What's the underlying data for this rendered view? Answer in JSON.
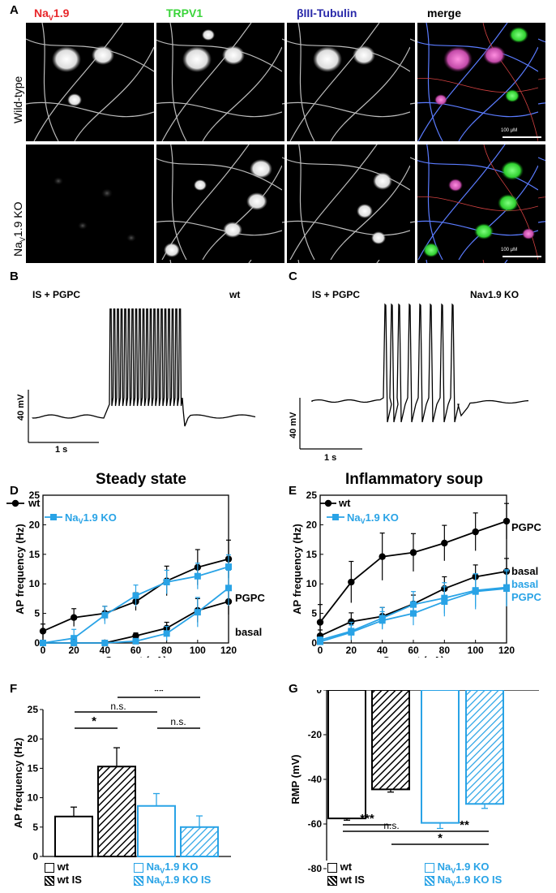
{
  "panels": {
    "A": {
      "label": "A",
      "channels": [
        "Na",
        "1.9",
        "V",
        "TRPV1",
        "βIII-Tubulin",
        "merge"
      ],
      "rows": [
        "Wild-type",
        "Na",
        "V",
        "1.9 KO"
      ],
      "scalebar": "100 µM"
    },
    "B": {
      "label": "B",
      "condition": "IS + PGPC",
      "genotype": "wt",
      "scale_v": "40 mV",
      "scale_t": "1 s"
    },
    "C": {
      "label": "C",
      "condition": "IS + PGPC",
      "genotype": "Nav1.9 KO",
      "scale_v": "40 mV",
      "scale_t": "1 s"
    },
    "D": {
      "label": "D",
      "title": "Steady state",
      "legend_wt": "wt",
      "legend_ko_a": "Na",
      "legend_ko_sub": "V",
      "legend_ko_b": "1.9 KO",
      "ann_pgpc": "PGPC",
      "ann_basal": "basal"
    },
    "E": {
      "label": "E",
      "title": "Inflammatory soup",
      "legend_wt": "wt",
      "legend_ko_a": "Na",
      "legend_ko_sub": "V",
      "legend_ko_b": "1.9 KO",
      "ann_pgpc": "PGPC",
      "ann_basal": "basal",
      "ann_basal_ko": "basal",
      "ann_pgpc_ko": "PGPC"
    },
    "F": {
      "label": "F",
      "sig1": "*",
      "sig2": "n.s.",
      "sig3": "**",
      "sig4": "n.s.",
      "leg_wt": "wt",
      "leg_wtis": "wt IS",
      "leg_ko_a": "Na",
      "leg_ko_sub": "V",
      "leg_ko_b": "1.9 KO",
      "leg_koIS_b": "1.9 KO IS"
    },
    "G": {
      "label": "G",
      "sig1": "***",
      "sig2": "n.s.",
      "sig3": "**",
      "sig4": "*",
      "leg_wt": "wt",
      "leg_wtis": "wt IS",
      "leg_ko_a": "Na",
      "leg_ko_sub": "V",
      "leg_ko_b": "1.9 KO",
      "leg_koIS_b": "1.9 KO IS"
    }
  },
  "colors": {
    "red": "#e8262a",
    "green": "#3ad43a",
    "blue": "#2a2aaa",
    "cyan": "#29a3e6",
    "black": "#000000"
  },
  "chart_data": [
    {
      "panel": "D",
      "type": "line",
      "title": "Steady state",
      "xlabel": "Current (pA)",
      "ylabel": "AP frequency (Hz)",
      "xlim": [
        0,
        120
      ],
      "ylim": [
        0,
        25
      ],
      "xticks": [
        0,
        20,
        40,
        60,
        80,
        100,
        120
      ],
      "yticks": [
        0,
        5,
        10,
        15,
        20,
        25
      ],
      "x": [
        0,
        20,
        40,
        60,
        80,
        100,
        120
      ],
      "series": [
        {
          "name": "wt PGPC",
          "color": "#000000",
          "marker": "circle",
          "values": [
            2,
            4.3,
            5,
            7,
            10.5,
            12.8,
            14.2
          ],
          "err": [
            1.2,
            1.5,
            1.2,
            1.5,
            2.5,
            3,
            3.2
          ]
        },
        {
          "name": "NaV1.9 KO PGPC",
          "color": "#29a3e6",
          "marker": "square",
          "values": [
            0,
            0.8,
            4.7,
            8,
            10.3,
            11.3,
            12.9
          ],
          "err": [
            0.3,
            1.5,
            1.5,
            1.8,
            2,
            2.2,
            2
          ]
        },
        {
          "name": "wt basal",
          "color": "#000000",
          "marker": "circle",
          "values": [
            0,
            0,
            0,
            1.2,
            2.5,
            5.5,
            7
          ],
          "err": [
            0.1,
            0.1,
            0.2,
            0.5,
            1,
            2,
            2.2
          ]
        },
        {
          "name": "NaV1.9 KO basal",
          "color": "#29a3e6",
          "marker": "square",
          "values": [
            0,
            0,
            0,
            0.3,
            1.6,
            5.2,
            9.3
          ],
          "err": [
            0.1,
            0.1,
            0.2,
            0.4,
            1.2,
            2.5,
            3
          ]
        }
      ]
    },
    {
      "panel": "E",
      "type": "line",
      "title": "Inflammatory soup",
      "xlabel": "Current (pA)",
      "ylabel": "AP frequency (Hz)",
      "xlim": [
        0,
        120
      ],
      "ylim": [
        0,
        25
      ],
      "xticks": [
        0,
        20,
        40,
        60,
        80,
        100,
        120
      ],
      "yticks": [
        0,
        5,
        10,
        15,
        20,
        25
      ],
      "x": [
        0,
        20,
        40,
        60,
        80,
        100,
        120
      ],
      "series": [
        {
          "name": "wt PGPC",
          "color": "#000000",
          "marker": "circle",
          "values": [
            3.5,
            10.3,
            14.6,
            15.3,
            16.9,
            18.8,
            20.6
          ],
          "err": [
            3,
            3.5,
            4,
            3.2,
            3,
            3.2,
            3
          ]
        },
        {
          "name": "wt basal",
          "color": "#000000",
          "marker": "circle",
          "values": [
            1.2,
            3.6,
            4.5,
            6.6,
            9.2,
            11.2,
            12.1
          ],
          "err": [
            1,
            1.5,
            1.5,
            1.5,
            2,
            2,
            2.2
          ]
        },
        {
          "name": "NaV1.9 KO basal",
          "color": "#29a3e6",
          "marker": "square",
          "values": [
            0.5,
            2,
            4.2,
            6.5,
            7.6,
            8.9,
            9.4
          ],
          "err": [
            0.5,
            1.5,
            1.8,
            2.2,
            2.6,
            2.8,
            3
          ]
        },
        {
          "name": "NaV1.9 KO PGPC",
          "color": "#29a3e6",
          "marker": "square",
          "values": [
            0.2,
            1.8,
            3.8,
            5,
            7,
            8.7,
            9.2
          ],
          "err": [
            0.4,
            1.2,
            1.5,
            2,
            2.5,
            3,
            3
          ]
        }
      ]
    },
    {
      "panel": "F",
      "type": "bar",
      "xlabel": "",
      "ylabel": "AP frequency (Hz)",
      "ylim": [
        0,
        25
      ],
      "yticks": [
        0,
        5,
        10,
        15,
        20,
        25
      ],
      "categories": [
        "wt",
        "wt IS",
        "NaV1.9 KO",
        "NaV1.9 KO IS"
      ],
      "values": [
        6.8,
        15.3,
        8.6,
        5
      ],
      "err": [
        1.6,
        3.2,
        2.1,
        1.9
      ]
    },
    {
      "panel": "G",
      "type": "bar",
      "xlabel": "",
      "ylabel": "RMP (mV)",
      "ylim": [
        -80,
        0
      ],
      "yticks": [
        0,
        -20,
        -40,
        -60,
        -80
      ],
      "categories": [
        "wt",
        "wt IS",
        "NaV1.9 KO",
        "NaV1.9 KO IS"
      ],
      "values": [
        -57.5,
        -44.5,
        -59.5,
        -51
      ],
      "err": [
        0.8,
        1.2,
        2.5,
        2
      ]
    }
  ]
}
